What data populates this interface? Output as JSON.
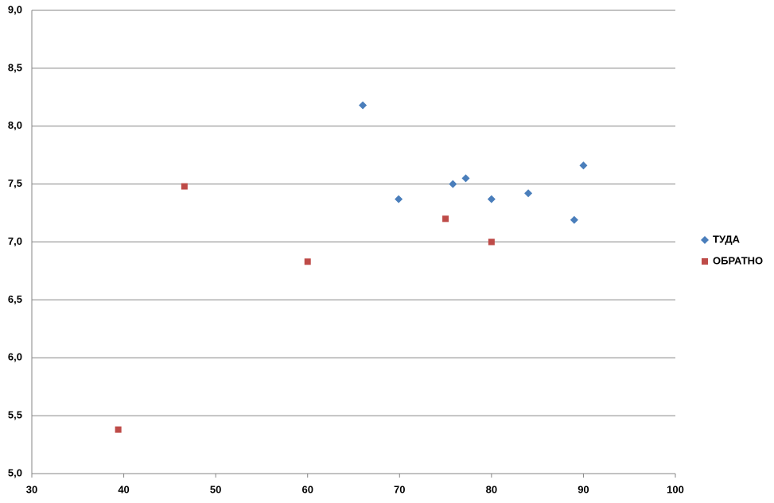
{
  "chart_data": {
    "type": "scatter",
    "series": [
      {
        "name": "ТУДА",
        "color": "#4a7ebb",
        "marker": "diamond",
        "x": [
          66.0,
          69.9,
          75.8,
          77.2,
          80.0,
          84.0,
          89.0,
          90.0
        ],
        "values": [
          8.18,
          7.37,
          7.5,
          7.55,
          7.37,
          7.42,
          7.19,
          7.66
        ]
      },
      {
        "name": "ОБРАТНО",
        "color": "#be4b48",
        "marker": "square",
        "x": [
          39.4,
          46.6,
          60.0,
          75.0,
          80.0
        ],
        "values": [
          5.38,
          7.48,
          6.83,
          7.2,
          7.0
        ]
      }
    ],
    "xlim": [
      30,
      100
    ],
    "xticks": [
      30,
      40,
      50,
      60,
      70,
      80,
      90,
      100
    ],
    "ylim": [
      5,
      9
    ],
    "yticks": [
      {
        "value": 5,
        "label": "5,0"
      },
      {
        "value": 5.5,
        "label": "5,5"
      },
      {
        "value": 6,
        "label": "6,0"
      },
      {
        "value": 6.5,
        "label": "6,5"
      },
      {
        "value": 7,
        "label": "7,0"
      },
      {
        "value": 7.5,
        "label": "7,5"
      },
      {
        "value": 8,
        "label": "8,0"
      },
      {
        "value": 8.5,
        "label": "8,5"
      },
      {
        "value": 9,
        "label": "9,0"
      }
    ],
    "grid": true,
    "legend": "right"
  }
}
